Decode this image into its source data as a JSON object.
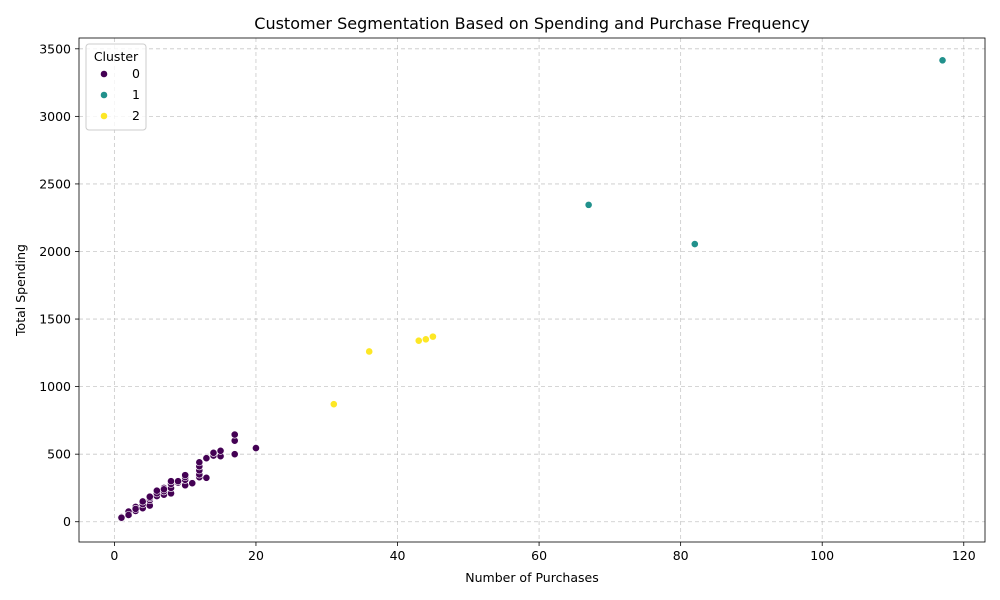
{
  "chart_data": {
    "type": "scatter",
    "title": "Customer Segmentation Based on Spending and Purchase Frequency",
    "xlabel": "Number of Purchases",
    "ylabel": "Total Spending",
    "xlim": [
      -5,
      123
    ],
    "ylim": [
      -150,
      3580
    ],
    "x_ticks": [
      0,
      20,
      40,
      60,
      80,
      100,
      120
    ],
    "y_ticks": [
      0,
      500,
      1000,
      1500,
      2000,
      2500,
      3000,
      3500
    ],
    "grid": true,
    "legend": {
      "title": "Cluster",
      "placement": "top-left",
      "entries": [
        "0",
        "1",
        "2"
      ]
    },
    "colors": {
      "0": "#440154",
      "1": "#21918c",
      "2": "#fde725"
    },
    "series": [
      {
        "name": "0",
        "points": [
          [
            1,
            25
          ],
          [
            1,
            35
          ],
          [
            1,
            30
          ],
          [
            2,
            60
          ],
          [
            2,
            75
          ],
          [
            2,
            50
          ],
          [
            3,
            80
          ],
          [
            3,
            110
          ],
          [
            3,
            95
          ],
          [
            4,
            100
          ],
          [
            4,
            130
          ],
          [
            4,
            150
          ],
          [
            5,
            120
          ],
          [
            5,
            160
          ],
          [
            5,
            175
          ],
          [
            5,
            185
          ],
          [
            6,
            190
          ],
          [
            6,
            210
          ],
          [
            6,
            230
          ],
          [
            7,
            200
          ],
          [
            7,
            225
          ],
          [
            7,
            250
          ],
          [
            7,
            240
          ],
          [
            8,
            210
          ],
          [
            8,
            250
          ],
          [
            8,
            280
          ],
          [
            8,
            300
          ],
          [
            9,
            290
          ],
          [
            9,
            300
          ],
          [
            10,
            270
          ],
          [
            10,
            310
          ],
          [
            10,
            330
          ],
          [
            10,
            345
          ],
          [
            11,
            285
          ],
          [
            12,
            330
          ],
          [
            12,
            350
          ],
          [
            12,
            380
          ],
          [
            12,
            410
          ],
          [
            12,
            440
          ],
          [
            13,
            325
          ],
          [
            13,
            470
          ],
          [
            14,
            490
          ],
          [
            14,
            510
          ],
          [
            15,
            485
          ],
          [
            15,
            525
          ],
          [
            17,
            500
          ],
          [
            17,
            600
          ],
          [
            17,
            645
          ],
          [
            20,
            545
          ]
        ]
      },
      {
        "name": "1",
        "points": [
          [
            67,
            2345
          ],
          [
            82,
            2055
          ],
          [
            117,
            3415
          ]
        ]
      },
      {
        "name": "2",
        "points": [
          [
            31,
            870
          ],
          [
            36,
            1260
          ],
          [
            43,
            1340
          ],
          [
            44,
            1350
          ],
          [
            45,
            1370
          ]
        ]
      }
    ]
  }
}
